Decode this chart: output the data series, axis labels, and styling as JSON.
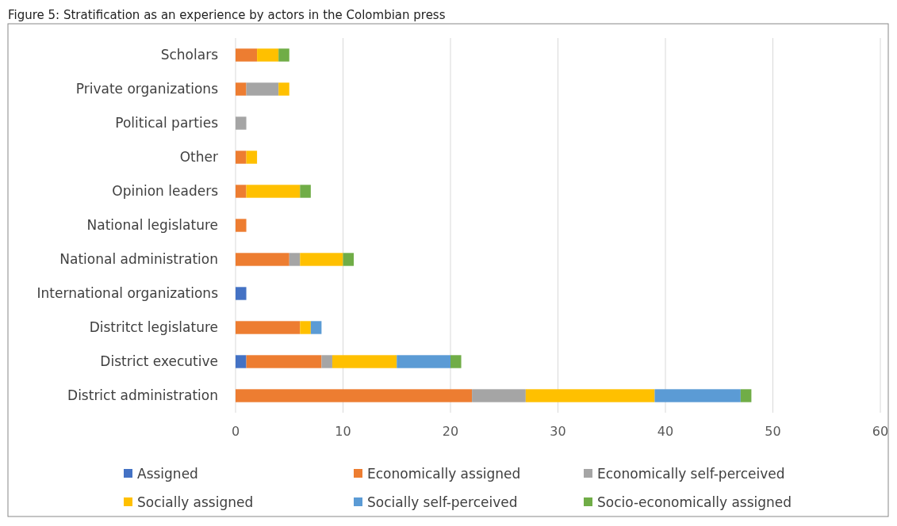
{
  "chart_data": {
    "type": "bar",
    "title": "Figure 5: Stratification as an experience by actors in the Colombian press",
    "orientation": "horizontal",
    "stacked": true,
    "categories": [
      "Scholars",
      "Private organizations",
      "Political parties",
      "Other",
      "Opinion leaders",
      "National legislature",
      "National administration",
      "International organizations",
      "Distritct legislature",
      "District executive",
      "District administration"
    ],
    "series": [
      {
        "name": "Assigned",
        "color": "#4472c4",
        "values": [
          null,
          null,
          null,
          null,
          null,
          null,
          null,
          1,
          null,
          1,
          null
        ]
      },
      {
        "name": "Economically assigned",
        "color": "#ed7d31",
        "values": [
          2,
          1,
          null,
          1,
          1,
          1,
          5,
          null,
          6,
          7,
          22
        ]
      },
      {
        "name": "Economically self-perceived",
        "color": "#a5a5a5",
        "values": [
          null,
          3,
          1,
          null,
          null,
          null,
          1,
          null,
          null,
          1,
          5
        ]
      },
      {
        "name": "Socially assigned",
        "color": "#ffc000",
        "values": [
          2,
          1,
          null,
          1,
          5,
          null,
          4,
          null,
          1,
          6,
          12
        ]
      },
      {
        "name": "Socially self-perceived",
        "color": "#5b9bd5",
        "values": [
          null,
          null,
          null,
          null,
          null,
          null,
          null,
          null,
          1,
          5,
          8
        ]
      },
      {
        "name": "Socio-economically assigned",
        "color": "#70ad47",
        "values": [
          1,
          null,
          null,
          null,
          1,
          null,
          1,
          null,
          null,
          1,
          1
        ]
      }
    ],
    "xlim": [
      0,
      60
    ],
    "xticks": [
      0,
      10,
      20,
      30,
      40,
      50,
      60
    ],
    "grid": "x",
    "legend": "bottom"
  }
}
